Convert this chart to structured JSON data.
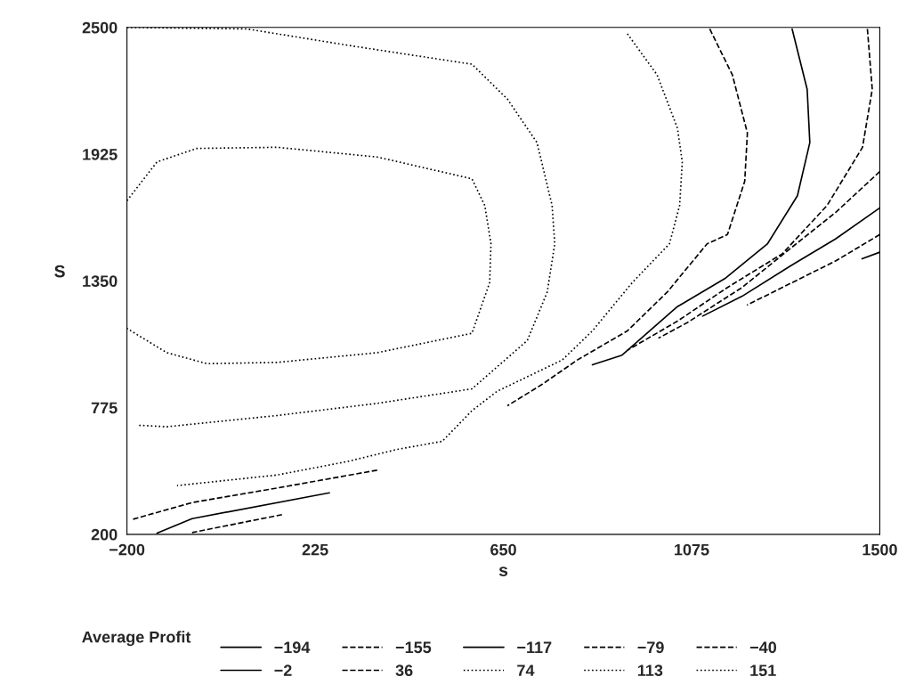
{
  "chart_data": {
    "type": "line",
    "xlabel": "s",
    "ylabel": "S",
    "legend_title": "Average Profit",
    "legend": "bottom",
    "grid": false,
    "xlim": [
      -200,
      1500
    ],
    "ylim": [
      200,
      2500
    ],
    "xticks": [
      -200,
      225,
      650,
      1075,
      1500
    ],
    "yticks": [
      200,
      775,
      1350,
      1925,
      2500
    ],
    "series": [
      {
        "name": "−194",
        "color": "#000000",
        "line_style": "solid",
        "x": [
          1500,
          1460
        ],
        "values": [
          1480,
          1450
        ]
      },
      {
        "name": "−155",
        "color": "#000000",
        "line_style": "dashed",
        "x": [
          1500,
          1400,
          1300,
          1200
        ],
        "values": [
          1560,
          1440,
          1340,
          1240
        ]
      },
      {
        "name": "−117",
        "color": "#000000",
        "line_style": "solid",
        "x": [
          1500,
          1400,
          1300,
          1189,
          1100
        ],
        "values": [
          1681,
          1540,
          1420,
          1280,
          1190
        ]
      },
      {
        "name": "−79",
        "color": "#000000",
        "line_style": "dashed",
        "x": [
          1500,
          1400,
          1300,
          1189,
          1065,
          1000
        ],
        "values": [
          1846,
          1660,
          1500,
          1320,
          1160,
          1090
        ]
      },
      {
        "name": "−40",
        "color": "#000000",
        "line_style": "dashed",
        "x": [
          1472,
          1483,
          1461,
          1381,
          1280,
          1156,
          1043,
          930,
          null,
          150,
          -53
        ],
        "values": [
          2493,
          2219,
          1956,
          1692,
          1473,
          1320,
          1167,
          1035,
          null,
          289,
          208
        ]
      },
      {
        "name": "−2",
        "color": "#000000",
        "line_style": "solid",
        "x": [
          1302,
          1336,
          1342,
          1314,
          1246,
          1150,
          1043,
          918,
          851,
          null,
          257,
          -53,
          -132
        ],
        "values": [
          2493,
          2219,
          1977,
          1736,
          1517,
          1360,
          1233,
          1013,
          969,
          null,
          388,
          271,
          205
        ]
      },
      {
        "name": "36",
        "color": "#000000",
        "line_style": "dashed",
        "x": [
          1116,
          1167,
          1201,
          1195,
          1156,
          1110,
          1020,
          930,
          817,
          738,
          659,
          null,
          365,
          139,
          -53,
          -189
        ],
        "values": [
          2493,
          2285,
          2021,
          1802,
          1560,
          1518,
          1299,
          1123,
          991,
          881,
          783,
          null,
          491,
          410,
          344,
          267
        ]
      },
      {
        "name": "74",
        "color": "#000000",
        "line_style": "dotted",
        "x": [
          930,
          997,
          1043,
          1054,
          1048,
          1025,
          941,
          851,
          783,
          636,
          579,
          512,
          410,
          297,
          139,
          -87
        ],
        "values": [
          2471,
          2285,
          2043,
          1890,
          1692,
          1518,
          1342,
          1123,
          991,
          849,
          761,
          622,
          585,
          530,
          469,
          421
        ]
      },
      {
        "name": "113",
        "color": "#000000",
        "line_style": "dotted",
        "x": [
          -200,
          71,
          308,
          579,
          659,
          726,
          760,
          766,
          749,
          704,
          579,
          365,
          139,
          -110,
          -177
        ],
        "values": [
          2500,
          2493,
          2416,
          2333,
          2175,
          1977,
          1692,
          1518,
          1299,
          1079,
          860,
          794,
          739,
          688,
          695
        ]
      },
      {
        "name": "151",
        "color": "#000000",
        "line_style": "dotted",
        "x": [
          -200,
          -132,
          -42,
          139,
          365,
          579,
          608,
          622,
          619,
          579,
          365,
          139,
          -19,
          -110,
          -200
        ],
        "values": [
          1714,
          1890,
          1951,
          1956,
          1912,
          1813,
          1692,
          1518,
          1342,
          1112,
          1024,
          980,
          974,
          1024,
          1134
        ]
      }
    ]
  }
}
